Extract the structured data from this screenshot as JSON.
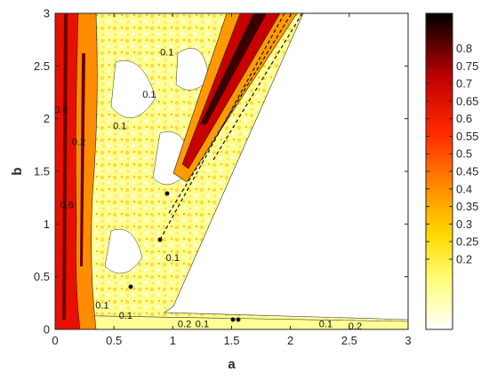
{
  "chart_data": {
    "type": "heatmap",
    "subtype": "filled contour",
    "title": "",
    "xlabel": "a",
    "ylabel": "b",
    "xlim": [
      0,
      3
    ],
    "ylim": [
      0,
      3
    ],
    "xticks": [
      0,
      0.5,
      1,
      1.5,
      2,
      2.5,
      3
    ],
    "xtick_labels": [
      "0",
      "0.5",
      "1",
      "1.5",
      "2",
      "2.5",
      "3"
    ],
    "yticks": [
      0,
      0.5,
      1,
      1.5,
      2,
      2.5,
      3
    ],
    "ytick_labels": [
      "0",
      "0.5",
      "1",
      "1.5",
      "2",
      "2.5",
      "3"
    ],
    "colorbar": {
      "range": [
        0,
        0.9
      ],
      "ticks": [
        0.2,
        0.25,
        0.3,
        0.35,
        0.4,
        0.45,
        0.5,
        0.55,
        0.6,
        0.65,
        0.7,
        0.75,
        0.8
      ],
      "tick_labels": [
        "0.2",
        "0.25",
        "0.3",
        "0.35",
        "0.4",
        "0.45",
        "0.5",
        "0.55",
        "0.6",
        "0.65",
        "0.7",
        "0.75",
        "0.8"
      ],
      "colormap": "hot (reversed)",
      "colors": [
        "#ffffff",
        "#ffff80",
        "#ffd800",
        "#ff8c00",
        "#ff2a00",
        "#c00000",
        "#4a0000",
        "#000000"
      ]
    },
    "regions": [
      {
        "name": "left band",
        "a_range": [
          0,
          0.3
        ],
        "b_range": [
          0,
          3
        ],
        "value_approx": 0.6
      },
      {
        "name": "lower wedge",
        "a_edge_at_b0": 0.7,
        "a_edge_at_b3": 2.1,
        "value_approx": 0.1
      },
      {
        "name": "upper diagonal ridge",
        "from": [
          1.0,
          1.5
        ],
        "to": [
          2.05,
          3.0
        ],
        "value_approx": 0.7
      },
      {
        "name": "bottom strip",
        "a_range": [
          0,
          3
        ],
        "b_range": [
          0,
          0.1
        ],
        "value_approx": 0.1
      },
      {
        "name": "right region",
        "value_approx": 0.0
      }
    ],
    "contour_labels": [
      {
        "text": "0.1",
        "a": 1.0,
        "b": 0.65
      },
      {
        "text": "0.1",
        "a": 0.95,
        "b": 2.6
      },
      {
        "text": "0.1",
        "a": 0.8,
        "b": 2.2
      },
      {
        "text": "0.1",
        "a": 0.55,
        "b": 1.9
      },
      {
        "text": "0.6",
        "a": 0.05,
        "b": 2.05
      },
      {
        "text": "0.6",
        "a": 0.1,
        "b": 1.15
      },
      {
        "text": "0.2",
        "a": 0.2,
        "b": 1.75
      },
      {
        "text": "0.2",
        "a": 1.1,
        "b": 0.02
      },
      {
        "text": "0.1",
        "a": 1.25,
        "b": 0.02
      },
      {
        "text": "0.1",
        "a": 2.3,
        "b": 0.02
      },
      {
        "text": "0.2",
        "a": 2.55,
        "b": 0.0
      },
      {
        "text": "0.1",
        "a": 0.4,
        "b": 0.2
      },
      {
        "text": "0.1",
        "a": 0.6,
        "b": 0.1
      }
    ]
  }
}
